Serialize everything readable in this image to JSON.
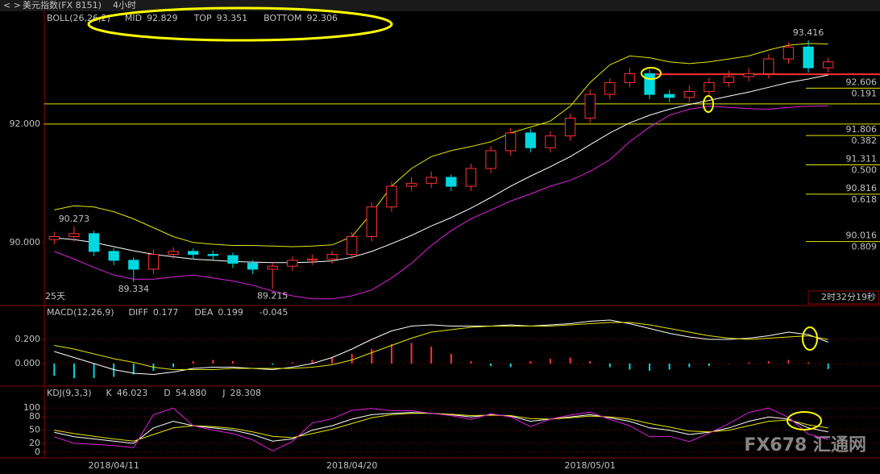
{
  "header": {
    "symbol": "美元指数(FX 8151)",
    "period": "4小时",
    "span": "25天",
    "countdown": "2时32分19秒",
    "watermark": "FX678 汇通网"
  },
  "chart_data": [
    {
      "type": "candlestick",
      "indicator": "BOLL(26,26,2)",
      "up_color": "#ff3232",
      "down_color": "#00d8e0",
      "grid": false,
      "categories": [
        null,
        null,
        null,
        "2018/04/11",
        null,
        null,
        null,
        null,
        null,
        null,
        null,
        null,
        null,
        null,
        null,
        "2018/04/20",
        null,
        null,
        null,
        null,
        null,
        null,
        null,
        null,
        null,
        null,
        null,
        "2018/05/01",
        null,
        null,
        null,
        null,
        null,
        null,
        null,
        null,
        null,
        null,
        null,
        null
      ],
      "open": [
        90.05,
        90.1,
        90.15,
        89.85,
        89.7,
        89.55,
        89.8,
        89.85,
        89.8,
        89.78,
        89.65,
        89.55,
        89.6,
        89.7,
        89.72,
        89.8,
        90.1,
        90.6,
        90.95,
        91.0,
        91.1,
        90.95,
        91.25,
        91.55,
        91.85,
        91.6,
        91.8,
        92.1,
        92.5,
        92.7,
        92.85,
        92.5,
        92.45,
        92.55,
        92.7,
        92.8,
        92.85,
        93.1,
        93.3,
        92.95
      ],
      "high": [
        90.18,
        90.273,
        90.2,
        89.9,
        89.75,
        89.88,
        89.92,
        89.9,
        89.86,
        89.83,
        89.7,
        89.66,
        89.76,
        89.8,
        89.86,
        90.18,
        90.68,
        91.03,
        91.1,
        91.2,
        91.15,
        91.33,
        91.63,
        91.93,
        91.92,
        91.88,
        92.18,
        92.58,
        92.78,
        92.95,
        92.92,
        92.58,
        92.65,
        92.78,
        92.9,
        92.95,
        93.18,
        93.38,
        93.416,
        93.12
      ],
      "low": [
        89.97,
        90.02,
        89.77,
        89.62,
        89.334,
        89.47,
        89.72,
        89.72,
        89.7,
        89.57,
        89.47,
        89.215,
        89.52,
        89.62,
        89.64,
        89.72,
        90.02,
        90.52,
        90.87,
        90.92,
        90.87,
        90.87,
        91.17,
        91.47,
        91.52,
        91.52,
        91.72,
        92.02,
        92.42,
        92.62,
        92.42,
        92.37,
        92.37,
        92.47,
        92.62,
        92.72,
        92.77,
        93.02,
        92.87,
        92.87
      ],
      "close": [
        90.1,
        90.15,
        89.85,
        89.7,
        89.55,
        89.8,
        89.85,
        89.8,
        89.78,
        89.65,
        89.55,
        89.6,
        89.7,
        89.72,
        89.8,
        90.1,
        90.6,
        90.95,
        91.0,
        91.1,
        90.95,
        91.25,
        91.55,
        91.85,
        91.6,
        91.8,
        92.1,
        92.5,
        92.7,
        92.85,
        92.5,
        92.45,
        92.55,
        92.7,
        92.8,
        92.85,
        93.1,
        93.3,
        92.95,
        93.05
      ],
      "series": [
        {
          "name": "MID",
          "color": "#ffffff",
          "values": [
            90.08,
            90.05,
            90.0,
            89.93,
            89.86,
            89.8,
            89.76,
            89.72,
            89.7,
            89.68,
            89.67,
            89.66,
            89.66,
            89.67,
            89.69,
            89.75,
            89.85,
            89.98,
            90.12,
            90.28,
            90.42,
            90.58,
            90.76,
            90.95,
            91.12,
            91.28,
            91.45,
            91.65,
            91.85,
            92.02,
            92.15,
            92.25,
            92.33,
            92.4,
            92.47,
            92.54,
            92.62,
            92.7,
            92.76,
            92.829
          ]
        },
        {
          "name": "TOP",
          "color": "#e6e600",
          "values": [
            90.55,
            90.62,
            90.6,
            90.52,
            90.4,
            90.25,
            90.1,
            90.0,
            89.97,
            89.95,
            89.95,
            89.94,
            89.93,
            89.94,
            89.96,
            90.1,
            90.5,
            90.95,
            91.25,
            91.45,
            91.55,
            91.62,
            91.7,
            91.85,
            91.95,
            92.05,
            92.3,
            92.7,
            93.0,
            93.15,
            93.12,
            93.05,
            93.02,
            93.05,
            93.1,
            93.15,
            93.25,
            93.33,
            93.36,
            93.351
          ]
        },
        {
          "name": "BOTTOM",
          "color": "#e020e0",
          "values": [
            89.85,
            89.72,
            89.58,
            89.45,
            89.38,
            89.38,
            89.42,
            89.45,
            89.4,
            89.35,
            89.28,
            89.18,
            89.1,
            89.05,
            89.05,
            89.1,
            89.2,
            89.4,
            89.65,
            89.95,
            90.2,
            90.4,
            90.55,
            90.7,
            90.82,
            90.95,
            91.05,
            91.2,
            91.4,
            91.7,
            91.95,
            92.15,
            92.25,
            92.3,
            92.28,
            92.26,
            92.25,
            92.28,
            92.3,
            92.306
          ]
        }
      ],
      "ylim": [
        88.95,
        93.89
      ],
      "yticks": [
        {
          "value": 90,
          "label": "90.000"
        },
        {
          "value": 92,
          "label": "92.000"
        }
      ],
      "hlines": [
        {
          "value": 92.34,
          "color": "#e6e600"
        },
        {
          "value": 92,
          "color": "#e6e600"
        },
        {
          "value": 92.84,
          "color": "#ff3232",
          "start": 30
        }
      ],
      "fib_levels": [
        {
          "price": 92.606,
          "ratio": 0.191
        },
        {
          "price": 91.806,
          "ratio": 0.382
        },
        {
          "price": 91.311,
          "ratio": {
            "value": 0.5,
            "label": "0.500"
          }
        },
        {
          "price": 90.816,
          "ratio": 0.618
        },
        {
          "price": 90.016,
          "ratio": 0.809
        }
      ],
      "fib_color": "#e6e600"
    },
    {
      "type": "line",
      "indicator": "MACD(12,26,9)",
      "grid": true,
      "series": [
        {
          "name": "DIFF",
          "color": "#ffffff",
          "values": [
            0.1,
            0.05,
            0.0,
            -0.05,
            -0.08,
            -0.09,
            -0.07,
            -0.04,
            -0.03,
            -0.03,
            -0.04,
            -0.05,
            -0.03,
            0.0,
            0.05,
            0.12,
            0.2,
            0.27,
            0.31,
            0.32,
            0.31,
            0.31,
            0.31,
            0.32,
            0.31,
            0.32,
            0.33,
            0.35,
            0.36,
            0.33,
            0.29,
            0.25,
            0.22,
            0.2,
            0.2,
            0.21,
            0.23,
            0.26,
            0.24,
            0.177
          ]
        },
        {
          "name": "DEA",
          "color": "#e6e600",
          "values": [
            0.15,
            0.12,
            0.08,
            0.04,
            0.01,
            -0.03,
            -0.05,
            -0.05,
            -0.05,
            -0.04,
            -0.04,
            -0.04,
            -0.04,
            -0.03,
            -0.01,
            0.03,
            0.09,
            0.15,
            0.21,
            0.26,
            0.28,
            0.3,
            0.31,
            0.31,
            0.31,
            0.31,
            0.32,
            0.33,
            0.34,
            0.34,
            0.32,
            0.29,
            0.26,
            0.23,
            0.21,
            0.2,
            0.21,
            0.22,
            0.23,
            0.199
          ]
        }
      ],
      "histogram": {
        "up_color": "#ff3232",
        "down_color": "#00d8e0",
        "values": [
          -0.1,
          -0.12,
          -0.12,
          -0.11,
          -0.09,
          -0.06,
          -0.03,
          0.02,
          0.03,
          0.02,
          0.0,
          -0.01,
          0.01,
          0.03,
          0.05,
          0.08,
          0.12,
          0.16,
          0.17,
          0.14,
          0.08,
          0.02,
          -0.02,
          -0.03,
          0.02,
          0.04,
          0.05,
          0.02,
          -0.03,
          -0.05,
          -0.06,
          -0.05,
          -0.03,
          -0.02,
          0.0,
          0.01,
          0.02,
          0.03,
          0.01,
          -0.045
        ]
      },
      "ylim": [
        -0.18,
        0.473
      ],
      "yticks": [
        {
          "value": 0,
          "label": "0.000"
        },
        {
          "value": 0.2,
          "label": "0.200"
        }
      ]
    },
    {
      "type": "line",
      "indicator": "KDJ(9,3,3)",
      "grid": true,
      "series": [
        {
          "name": "K",
          "color": "#ffffff",
          "values": [
            45,
            35,
            30,
            25,
            20,
            55,
            70,
            60,
            55,
            50,
            40,
            25,
            30,
            50,
            60,
            75,
            85,
            88,
            90,
            88,
            85,
            80,
            85,
            82,
            70,
            75,
            80,
            85,
            78,
            70,
            55,
            50,
            40,
            45,
            55,
            70,
            80,
            75,
            55,
            46.023
          ]
        },
        {
          "name": "D",
          "color": "#e6e600",
          "last_label": "54.880",
          "values": [
            50,
            42,
            36,
            30,
            25,
            40,
            55,
            60,
            58,
            54,
            46,
            36,
            33,
            42,
            52,
            65,
            78,
            85,
            88,
            88,
            86,
            83,
            84,
            83,
            76,
            75,
            78,
            82,
            80,
            75,
            65,
            57,
            48,
            46,
            50,
            60,
            70,
            73,
            62,
            54.88
          ]
        },
        {
          "name": "J",
          "color": "#e020e0",
          "values": [
            35,
            20,
            18,
            15,
            10,
            85,
            100,
            60,
            50,
            42,
            28,
            3,
            24,
            66,
            76,
            95,
            99,
            94,
            94,
            88,
            83,
            74,
            87,
            80,
            58,
            75,
            84,
            91,
            74,
            60,
            35,
            36,
            24,
            43,
            65,
            90,
            100,
            79,
            41,
            28.308
          ]
        }
      ],
      "ylim": [
        -13,
        148
      ],
      "yticks": [
        0,
        20,
        50,
        80,
        100
      ]
    }
  ]
}
